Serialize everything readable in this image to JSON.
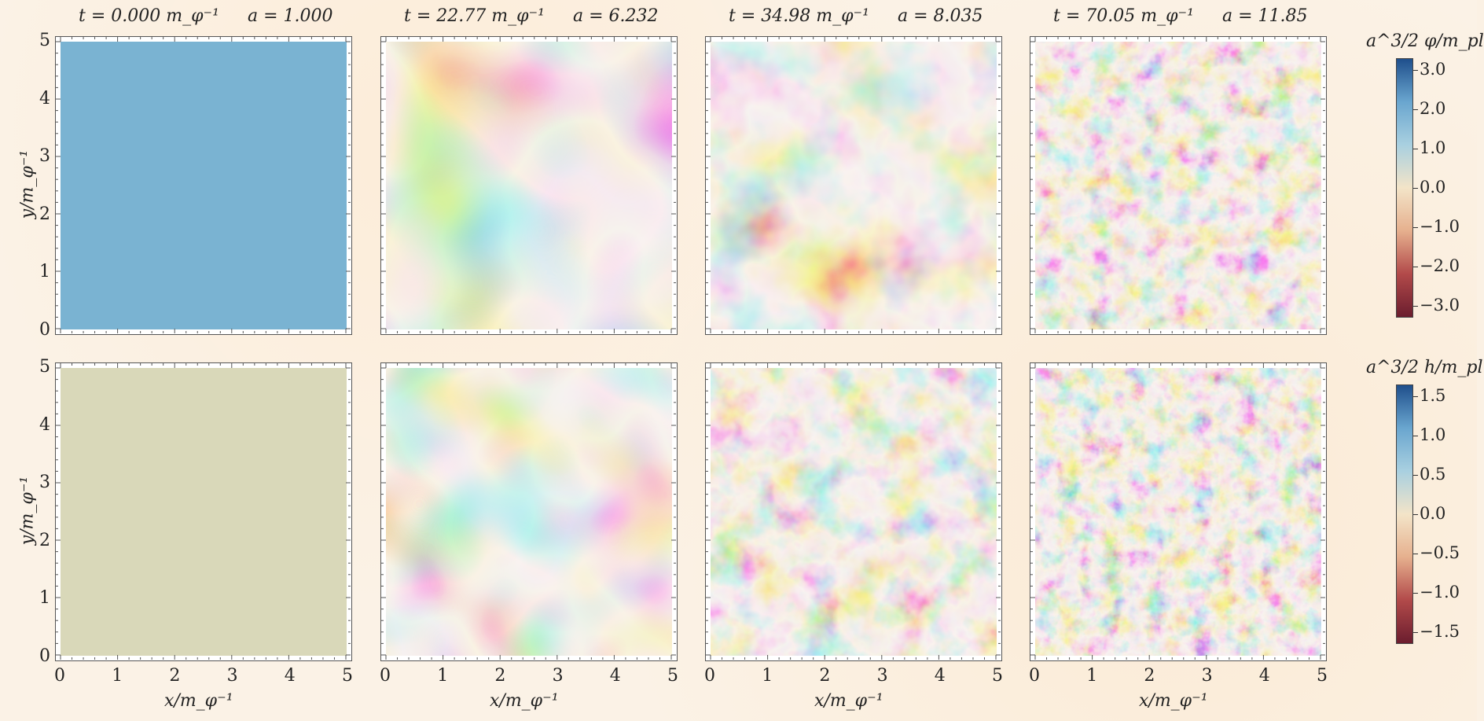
{
  "chart_data": {
    "type": "heatmap",
    "columns": [
      {
        "t": "t = 0.000 m_φ⁻¹",
        "a": "a = 1.000"
      },
      {
        "t": "t = 22.77 m_φ⁻¹",
        "a": "a = 6.232"
      },
      {
        "t": "t = 34.98 m_φ⁻¹",
        "a": "a = 8.035"
      },
      {
        "t": "t = 70.05 m_φ⁻¹",
        "a": "a = 11.85"
      }
    ],
    "rows": [
      {
        "field": "phi",
        "ylabel": "y/m_φ⁻¹",
        "colorbar_title": "a^3/2 φ/m_pl",
        "colorbar_ticks": [
          "3.0",
          "2.0",
          "1.0",
          "0.0",
          "−1.0",
          "−2.0",
          "−3.0"
        ],
        "colorbar_range": [
          -3.3,
          3.3
        ]
      },
      {
        "field": "h",
        "ylabel": "y/m_φ⁻¹",
        "colorbar_title": "a^3/2 h/m_pl",
        "colorbar_ticks": [
          "1.5",
          "1.0",
          "0.5",
          "0.0",
          "−0.5",
          "−1.0",
          "−1.5"
        ],
        "colorbar_range": [
          -1.65,
          1.65
        ]
      }
    ],
    "xlabel": "x/m_φ⁻¹",
    "x_ticks": [
      "0",
      "1",
      "2",
      "3",
      "4",
      "5"
    ],
    "y_ticks": [
      "0",
      "1",
      "2",
      "3",
      "4",
      "5"
    ],
    "xlim": [
      0,
      5
    ],
    "ylim": [
      0,
      5
    ],
    "colormap": [
      "#6b1d2e",
      "#b24a4a",
      "#e6b08e",
      "#f3e4c8",
      "#a9d0e0",
      "#6aa6cf",
      "#1f4f8c"
    ],
    "uniform_fill": {
      "phi_t0": "#7ab3d2",
      "h_t0": "#d9d8b9"
    }
  }
}
